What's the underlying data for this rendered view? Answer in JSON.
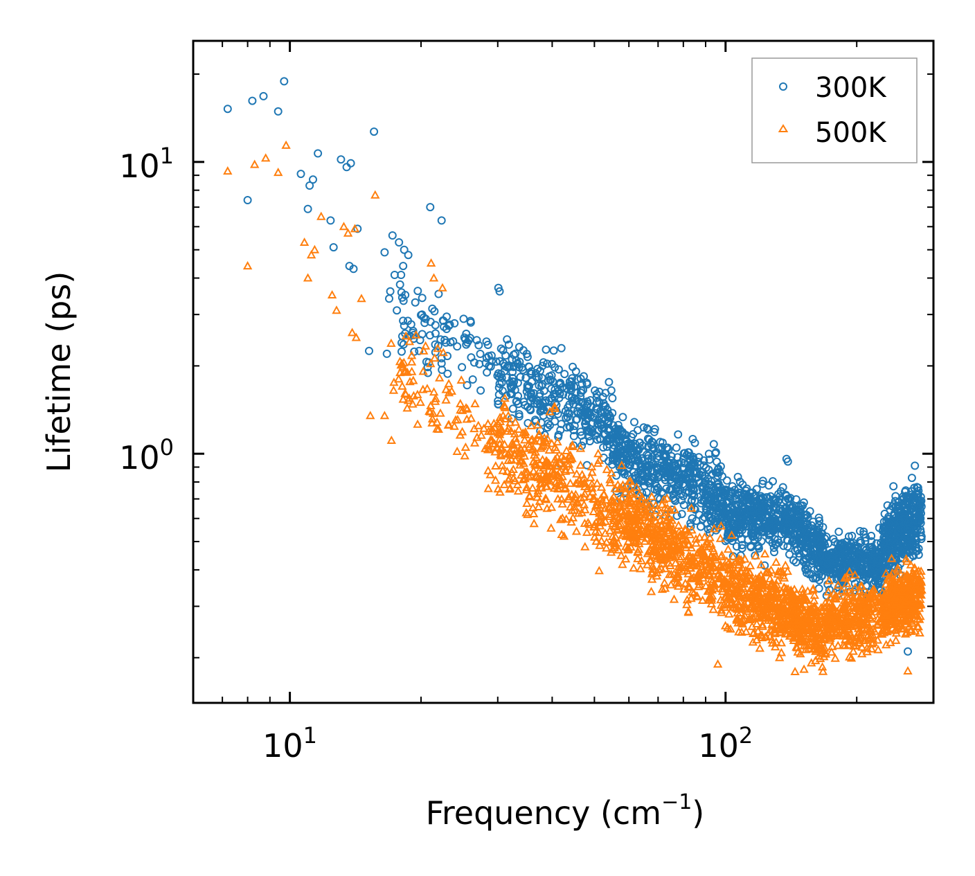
{
  "chart_data": {
    "type": "scatter",
    "xscale": "log",
    "yscale": "log",
    "xlabel": "Frequency (cm",
    "xlabel_sup": "−1",
    "xlabel_close": ")",
    "ylabel": "Lifetime (ps)",
    "xlim": [
      6.0,
      300.0
    ],
    "ylim": [
      0.14,
      26.0
    ],
    "x_major_ticks": [
      {
        "value": 10,
        "base": "10",
        "exp": "1"
      },
      {
        "value": 100,
        "base": "10",
        "exp": "2"
      }
    ],
    "y_major_ticks": [
      {
        "value": 1,
        "base": "10",
        "exp": "0"
      },
      {
        "value": 10,
        "base": "10",
        "exp": "1"
      }
    ],
    "legend_position": "upper-right",
    "series": [
      {
        "name": "300K",
        "marker": "circle-open",
        "color": "#1f77b4",
        "outliers": [
          [
            7.2,
            15.2
          ],
          [
            8.2,
            16.2
          ],
          [
            8.7,
            16.8
          ],
          [
            9.4,
            14.9
          ],
          [
            9.7,
            18.9
          ],
          [
            8.0,
            7.4
          ],
          [
            10.6,
            9.1
          ],
          [
            11.1,
            8.3
          ],
          [
            11.3,
            8.7
          ],
          [
            11.6,
            10.7
          ],
          [
            11.0,
            6.9
          ],
          [
            12.4,
            6.3
          ],
          [
            12.6,
            5.1
          ],
          [
            13.1,
            10.2
          ],
          [
            13.5,
            9.6
          ],
          [
            13.8,
            9.9
          ],
          [
            14.3,
            5.9
          ],
          [
            13.7,
            4.4
          ],
          [
            14.0,
            4.3
          ],
          [
            15.6,
            12.7
          ],
          [
            21.0,
            7.0
          ],
          [
            22.3,
            6.3
          ],
          [
            17.2,
            5.6
          ],
          [
            16.5,
            4.9
          ],
          [
            17.8,
            5.3
          ],
          [
            18.3,
            5.0
          ],
          [
            18.7,
            4.8
          ],
          [
            18.2,
            4.4
          ],
          [
            18.0,
            4.1
          ],
          [
            17.4,
            4.1
          ],
          [
            17.0,
            3.6
          ],
          [
            17.9,
            3.8
          ],
          [
            18.4,
            3.5
          ],
          [
            16.9,
            3.4
          ],
          [
            17.6,
            3.1
          ],
          [
            15.2,
            2.25
          ],
          [
            16.7,
            2.2
          ],
          [
            19.4,
            3.3
          ],
          [
            20.1,
            3.0
          ],
          [
            20.5,
            2.9
          ],
          [
            19.8,
            2.25
          ],
          [
            30.1,
            3.7
          ],
          [
            30.3,
            3.6
          ],
          [
            42.0,
            2.3
          ],
          [
            38.0,
            2.0
          ],
          [
            48.0,
            1.75
          ],
          [
            55.0,
            1.55
          ],
          [
            138.0,
            0.96
          ],
          [
            139.0,
            0.94
          ],
          [
            272.0,
            0.91
          ],
          [
            262.0,
            0.21
          ]
        ],
        "bands": [
          {
            "x0": 18.0,
            "x1": 30.0,
            "n": 90,
            "y0": 2.7,
            "y1": 2.05,
            "spread": 0.24
          },
          {
            "x0": 30.0,
            "x1": 55.0,
            "n": 320,
            "y0": 1.95,
            "y1": 1.22,
            "spread": 0.24
          },
          {
            "x0": 55.0,
            "x1": 100.0,
            "n": 520,
            "y0": 1.05,
            "y1": 0.7,
            "spread": 0.22
          },
          {
            "x0": 100.0,
            "x1": 140.0,
            "n": 380,
            "y0": 0.62,
            "y1": 0.6,
            "spread": 0.18
          },
          {
            "x0": 140.0,
            "x1": 170.0,
            "n": 260,
            "y0": 0.58,
            "y1": 0.45,
            "spread": 0.18
          },
          {
            "x0": 170.0,
            "x1": 230.0,
            "n": 330,
            "y0": 0.43,
            "y1": 0.42,
            "spread": 0.16
          },
          {
            "x0": 230.0,
            "x1": 282.0,
            "n": 380,
            "y0": 0.5,
            "y1": 0.62,
            "spread": 0.2
          }
        ]
      },
      {
        "name": "500K",
        "marker": "triangle-open",
        "color": "#ff7f0e",
        "outliers": [
          [
            7.2,
            9.3
          ],
          [
            8.3,
            9.8
          ],
          [
            8.8,
            10.3
          ],
          [
            9.4,
            9.2
          ],
          [
            9.8,
            11.4
          ],
          [
            8.0,
            4.4
          ],
          [
            10.8,
            5.3
          ],
          [
            11.2,
            4.8
          ],
          [
            11.4,
            5.0
          ],
          [
            11.8,
            6.5
          ],
          [
            11.0,
            4.0
          ],
          [
            12.5,
            3.5
          ],
          [
            12.8,
            3.1
          ],
          [
            13.3,
            6.0
          ],
          [
            13.6,
            5.7
          ],
          [
            14.1,
            5.9
          ],
          [
            13.9,
            2.6
          ],
          [
            14.2,
            2.5
          ],
          [
            15.7,
            7.7
          ],
          [
            14.6,
            3.4
          ],
          [
            15.3,
            1.35
          ],
          [
            16.5,
            1.35
          ],
          [
            18.6,
            1.9
          ],
          [
            21.1,
            4.5
          ],
          [
            21.4,
            4.0
          ],
          [
            22.4,
            3.7
          ],
          [
            40.5,
            1.45
          ],
          [
            51.0,
            1.0
          ],
          [
            118.0,
            0.34
          ],
          [
            133.0,
            0.2
          ],
          [
            190.0,
            0.38
          ],
          [
            96.0,
            0.19
          ],
          [
            262.0,
            0.18
          ]
        ],
        "bands": [
          {
            "x0": 17.0,
            "x1": 30.0,
            "n": 110,
            "y0": 2.0,
            "y1": 1.1,
            "spread": 0.3
          },
          {
            "x0": 30.0,
            "x1": 55.0,
            "n": 340,
            "y0": 1.1,
            "y1": 0.62,
            "spread": 0.26
          },
          {
            "x0": 55.0,
            "x1": 100.0,
            "n": 540,
            "y0": 0.62,
            "y1": 0.37,
            "spread": 0.24
          },
          {
            "x0": 100.0,
            "x1": 140.0,
            "n": 380,
            "y0": 0.35,
            "y1": 0.29,
            "spread": 0.22
          },
          {
            "x0": 140.0,
            "x1": 170.0,
            "n": 260,
            "y0": 0.28,
            "y1": 0.24,
            "spread": 0.2
          },
          {
            "x0": 170.0,
            "x1": 230.0,
            "n": 330,
            "y0": 0.27,
            "y1": 0.28,
            "spread": 0.18
          },
          {
            "x0": 230.0,
            "x1": 282.0,
            "n": 380,
            "y0": 0.3,
            "y1": 0.33,
            "spread": 0.2
          }
        ]
      }
    ]
  }
}
